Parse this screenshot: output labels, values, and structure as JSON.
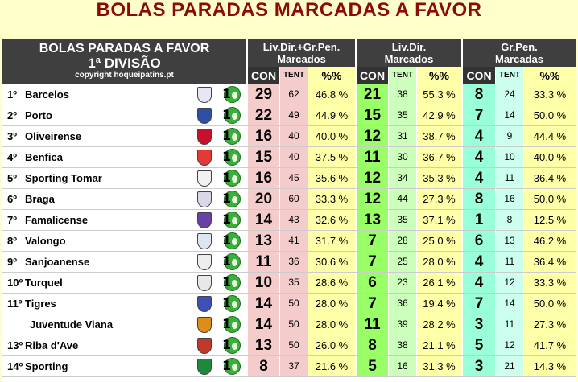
{
  "page_title": "BOLAS PARADAS MARCADAS A FAVOR",
  "header": {
    "title_line1": "BOLAS PARADAS A FAVOR",
    "title_line2": "1ª DIVISÃO",
    "copyright": "copyright hoqueipatins.pt",
    "groups": [
      {
        "line1": "Liv.Dir.+Gr.Pen.",
        "line2": "Marcados"
      },
      {
        "line1": "Liv.Dir.",
        "line2": "Marcados"
      },
      {
        "line1": "Gr.Pen.",
        "line2": "Marcadas"
      }
    ],
    "sub_con": "CON",
    "sub_tent": "TENT",
    "sub_pct": "%%"
  },
  "colors": {
    "title": "#8B0A0A",
    "header_bg": "#3F3F3F",
    "total_con": "#F4CCCC",
    "total_pct": "#FFFFA8",
    "ld_con": "#99FF66",
    "ld_tent": "#CCFFBB",
    "gp_con": "#99FFD9",
    "gp_tent": "#CCFFEE",
    "page_bg": "#FFFFCC"
  },
  "rows": [
    {
      "rank": "1º",
      "team": "Barcelos",
      "crest": "barcelos-crest-icon",
      "tot_con": "29",
      "tot_tent": "62",
      "tot_pct": "46.8 %",
      "ld_con": "21",
      "ld_tent": "38",
      "ld_pct": "55.3 %",
      "gp_con": "8",
      "gp_tent": "24",
      "gp_pct": "33.3 %"
    },
    {
      "rank": "2º",
      "team": "Porto",
      "crest": "porto-crest-icon",
      "tot_con": "22",
      "tot_tent": "49",
      "tot_pct": "44.9 %",
      "ld_con": "15",
      "ld_tent": "35",
      "ld_pct": "42.9 %",
      "gp_con": "7",
      "gp_tent": "14",
      "gp_pct": "50.0 %"
    },
    {
      "rank": "3º",
      "team": "Oliveirense",
      "crest": "oliveirense-crest-icon",
      "tot_con": "16",
      "tot_tent": "40",
      "tot_pct": "40.0 %",
      "ld_con": "12",
      "ld_tent": "31",
      "ld_pct": "38.7 %",
      "gp_con": "4",
      "gp_tent": "9",
      "gp_pct": "44.4 %"
    },
    {
      "rank": "4º",
      "team": "Benfica",
      "crest": "benfica-crest-icon",
      "tot_con": "15",
      "tot_tent": "40",
      "tot_pct": "37.5 %",
      "ld_con": "11",
      "ld_tent": "30",
      "ld_pct": "36.7 %",
      "gp_con": "4",
      "gp_tent": "10",
      "gp_pct": "40.0 %"
    },
    {
      "rank": "5º",
      "team": "Sporting Tomar",
      "crest": "sporting-tomar-crest-icon",
      "tot_con": "16",
      "tot_tent": "45",
      "tot_pct": "35.6 %",
      "ld_con": "12",
      "ld_tent": "34",
      "ld_pct": "35.3 %",
      "gp_con": "4",
      "gp_tent": "11",
      "gp_pct": "36.4 %"
    },
    {
      "rank": "6º",
      "team": "Braga",
      "crest": "braga-crest-icon",
      "tot_con": "20",
      "tot_tent": "60",
      "tot_pct": "33.3 %",
      "ld_con": "12",
      "ld_tent": "44",
      "ld_pct": "27.3 %",
      "gp_con": "8",
      "gp_tent": "16",
      "gp_pct": "50.0 %"
    },
    {
      "rank": "7º",
      "team": "Famalicense",
      "crest": "famalicense-crest-icon",
      "tot_con": "14",
      "tot_tent": "43",
      "tot_pct": "32.6 %",
      "ld_con": "13",
      "ld_tent": "35",
      "ld_pct": "37.1 %",
      "gp_con": "1",
      "gp_tent": "8",
      "gp_pct": "12.5 %"
    },
    {
      "rank": "8º",
      "team": "Valongo",
      "crest": "valongo-crest-icon",
      "tot_con": "13",
      "tot_tent": "41",
      "tot_pct": "31.7 %",
      "ld_con": "7",
      "ld_tent": "28",
      "ld_pct": "25.0 %",
      "gp_con": "6",
      "gp_tent": "13",
      "gp_pct": "46.2 %"
    },
    {
      "rank": "9º",
      "team": "Sanjoanense",
      "crest": "sanjoanense-crest-icon",
      "tot_con": "11",
      "tot_tent": "36",
      "tot_pct": "30.6 %",
      "ld_con": "7",
      "ld_tent": "25",
      "ld_pct": "28.0 %",
      "gp_con": "4",
      "gp_tent": "11",
      "gp_pct": "36.4 %"
    },
    {
      "rank": "10º",
      "team": "Turquel",
      "crest": "turquel-crest-icon",
      "tot_con": "10",
      "tot_tent": "35",
      "tot_pct": "28.6 %",
      "ld_con": "6",
      "ld_tent": "23",
      "ld_pct": "26.1 %",
      "gp_con": "4",
      "gp_tent": "12",
      "gp_pct": "33.3 %"
    },
    {
      "rank": "11º",
      "team": "Tigres",
      "crest": "tigres-crest-icon",
      "tot_con": "14",
      "tot_tent": "50",
      "tot_pct": "28.0 %",
      "ld_con": "7",
      "ld_tent": "36",
      "ld_pct": "19.4 %",
      "gp_con": "7",
      "gp_tent": "14",
      "gp_pct": "50.0 %"
    },
    {
      "rank": "",
      "team": "Juventude Viana",
      "crest": "juventude-viana-crest-icon",
      "tot_con": "14",
      "tot_tent": "50",
      "tot_pct": "28.0 %",
      "ld_con": "11",
      "ld_tent": "39",
      "ld_pct": "28.2 %",
      "gp_con": "3",
      "gp_tent": "11",
      "gp_pct": "27.3 %"
    },
    {
      "rank": "13º",
      "team": "Riba d'Ave",
      "crest": "riba-dave-crest-icon",
      "tot_con": "13",
      "tot_tent": "50",
      "tot_pct": "26.0 %",
      "ld_con": "8",
      "ld_tent": "38",
      "ld_pct": "21.1 %",
      "gp_con": "5",
      "gp_tent": "12",
      "gp_pct": "41.7 %"
    },
    {
      "rank": "14º",
      "team": "Sporting",
      "crest": "sporting-crest-icon",
      "tot_con": "8",
      "tot_tent": "37",
      "tot_pct": "21.6 %",
      "ld_con": "5",
      "ld_tent": "16",
      "ld_pct": "31.3 %",
      "gp_con": "3",
      "gp_tent": "21",
      "gp_pct": "14.3 %"
    }
  ]
}
